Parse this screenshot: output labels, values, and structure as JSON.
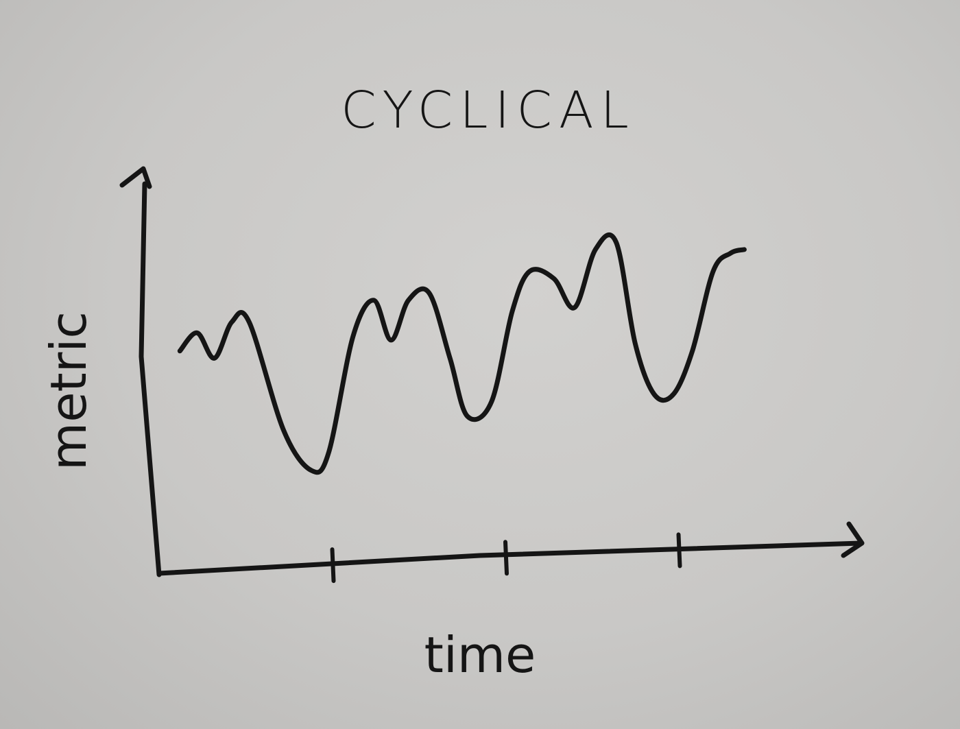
{
  "chart_data": {
    "type": "line",
    "title": "CYCLICAL",
    "xlabel": "time",
    "ylabel": "metric",
    "xlim": [
      0,
      4
    ],
    "ylim": [
      0,
      10
    ],
    "x_ticks": [
      1,
      2,
      3
    ],
    "grid": false,
    "legend": "none",
    "series": [
      {
        "color": "#151515",
        "x": [
          0.12,
          0.22,
          0.32,
          0.42,
          0.52,
          0.72,
          0.88,
          0.98,
          1.12,
          1.24,
          1.34,
          1.44,
          1.56,
          1.68,
          1.78,
          1.92,
          2.04,
          2.14,
          2.28,
          2.4,
          2.52,
          2.64,
          2.75,
          2.86,
          2.97,
          3.08,
          3.2,
          3.3,
          3.38
        ],
        "y": [
          5.8,
          6.3,
          5.6,
          6.6,
          6.6,
          3.6,
          2.5,
          3.0,
          6.2,
          7.2,
          6.1,
          7.2,
          7.4,
          5.6,
          4.0,
          4.4,
          6.9,
          8.0,
          7.8,
          7.0,
          8.6,
          8.8,
          6.0,
          4.6,
          4.6,
          5.8,
          8.0,
          8.5,
          8.6
        ]
      }
    ]
  }
}
